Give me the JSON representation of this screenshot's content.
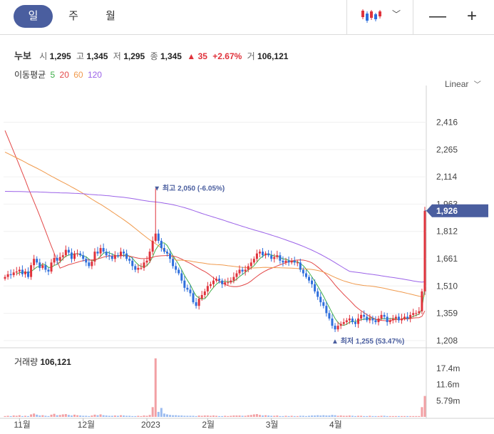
{
  "tabs": [
    {
      "label": "일"
    },
    {
      "label": "주"
    },
    {
      "label": "월"
    }
  ],
  "controls": {
    "chart_type_icon": "candlestick-icon",
    "dropdown_icon": "chevron-down-icon",
    "zoom_out": "—",
    "zoom_in": "+"
  },
  "summary": {
    "name": "누보",
    "open_label": "시",
    "open": "1,295",
    "high_label": "고",
    "high": "1,345",
    "low_label": "저",
    "low": "1,295",
    "close_label": "종",
    "close": "1,345",
    "change_arrow": "▲",
    "change": "35",
    "change_pct": "+2.67%",
    "volume_label": "거",
    "volume": "106,121"
  },
  "ma_legend": {
    "label": "이동평균",
    "periods": [
      {
        "text": "5",
        "color": "#3fae49"
      },
      {
        "text": "20",
        "color": "#e34848"
      },
      {
        "text": "60",
        "color": "#f09a4d"
      },
      {
        "text": "120",
        "color": "#9b62e8"
      }
    ]
  },
  "scale_mode": "Linear",
  "colors": {
    "up": "#e0333c",
    "down": "#2f6fdc",
    "accent": "#4a5e9f",
    "current_badge": "#4a5e9f"
  },
  "chart_data": {
    "type": "candlestick",
    "y_ticks": [
      "2,416",
      "2,265",
      "2,114",
      "1,963",
      "1,812",
      "1,661",
      "1,510",
      "1,359",
      "1,208"
    ],
    "y_tick_values": [
      2416,
      2265,
      2114,
      1963,
      1812,
      1661,
      1510,
      1359,
      1208
    ],
    "ylim": [
      1180,
      2560
    ],
    "x_ticks": [
      "11월",
      "12월",
      "2023",
      "2월",
      "3월",
      "4월"
    ],
    "current_price": "1,926",
    "current_value": 1926,
    "high_annotation": "최고 2,050 (-6.05%)",
    "high_value": 2050,
    "low_annotation": "최저 1,255 (53.47%)",
    "low_value": 1255,
    "volume_label": "거래량",
    "volume_value": "106,121",
    "volume_ticks": [
      "17.4m",
      "11.6m",
      "5.79m"
    ],
    "volume_tick_values": [
      17.4,
      11.6,
      5.79
    ],
    "volume_max": 23,
    "closes": [
      1560,
      1575,
      1570,
      1585,
      1590,
      1600,
      1575,
      1590,
      1560,
      1625,
      1660,
      1640,
      1610,
      1625,
      1600,
      1590,
      1640,
      1665,
      1650,
      1670,
      1680,
      1710,
      1695,
      1660,
      1690,
      1690,
      1680,
      1660,
      1640,
      1620,
      1645,
      1700,
      1690,
      1720,
      1700,
      1680,
      1675,
      1660,
      1680,
      1675,
      1700,
      1690,
      1660,
      1650,
      1620,
      1600,
      1610,
      1610,
      1640,
      1650,
      1700,
      1760,
      1800,
      1760,
      1720,
      1700,
      1690,
      1660,
      1620,
      1600,
      1580,
      1540,
      1500,
      1490,
      1470,
      1420,
      1400,
      1440,
      1460,
      1480,
      1510,
      1520,
      1540,
      1550,
      1540,
      1520,
      1530,
      1530,
      1540,
      1560,
      1580,
      1600,
      1590,
      1600,
      1620,
      1640,
      1660,
      1690,
      1700,
      1680,
      1690,
      1680,
      1660,
      1670,
      1680,
      1650,
      1640,
      1650,
      1640,
      1650,
      1640,
      1640,
      1600,
      1580,
      1560,
      1540,
      1520,
      1480,
      1450,
      1420,
      1400,
      1360,
      1330,
      1290,
      1270,
      1290,
      1300,
      1310,
      1320,
      1330,
      1310,
      1300,
      1330,
      1350,
      1340,
      1320,
      1330,
      1320,
      1310,
      1330,
      1350,
      1340,
      1310,
      1320,
      1330,
      1340,
      1320,
      1330,
      1340,
      1330,
      1350,
      1360,
      1360,
      1370,
      1480,
      1926
    ],
    "volumes": [
      0.3,
      0.4,
      0.3,
      0.5,
      0.4,
      0.6,
      0.3,
      0.4,
      0.3,
      0.9,
      1.2,
      0.8,
      0.5,
      0.6,
      0.4,
      0.3,
      0.8,
      1.1,
      0.6,
      0.7,
      0.9,
      1.0,
      0.7,
      0.5,
      0.8,
      0.6,
      0.5,
      0.4,
      0.4,
      0.3,
      0.5,
      0.8,
      0.6,
      0.9,
      0.6,
      0.5,
      0.4,
      0.4,
      0.5,
      0.4,
      0.6,
      0.5,
      0.4,
      0.4,
      0.3,
      0.3,
      0.4,
      0.3,
      0.5,
      0.4,
      0.7,
      3.5,
      21.0,
      1.8,
      3.2,
      1.2,
      0.9,
      0.7,
      0.6,
      0.6,
      0.5,
      0.5,
      0.4,
      0.4,
      0.4,
      0.4,
      0.3,
      0.5,
      0.4,
      0.5,
      0.5,
      0.4,
      0.5,
      0.4,
      0.3,
      0.3,
      0.4,
      0.3,
      0.4,
      0.5,
      0.5,
      0.5,
      0.4,
      0.4,
      0.6,
      0.7,
      0.9,
      1.0,
      0.7,
      0.5,
      0.6,
      0.5,
      0.4,
      0.4,
      0.5,
      0.3,
      0.3,
      0.4,
      0.3,
      0.4,
      0.3,
      0.3,
      0.4,
      0.4,
      0.3,
      0.4,
      0.5,
      0.5,
      0.6,
      0.5,
      0.6,
      0.5,
      0.5,
      0.7,
      0.6,
      0.4,
      0.5,
      0.4,
      0.4,
      0.5,
      0.4,
      0.3,
      0.4,
      0.4,
      0.3,
      0.3,
      0.4,
      0.3,
      0.3,
      0.3,
      0.4,
      0.4,
      0.3,
      0.3,
      0.3,
      0.3,
      0.3,
      0.3,
      0.3,
      0.3,
      0.3,
      0.3,
      0.3,
      0.3,
      3.5,
      7.5
    ]
  }
}
